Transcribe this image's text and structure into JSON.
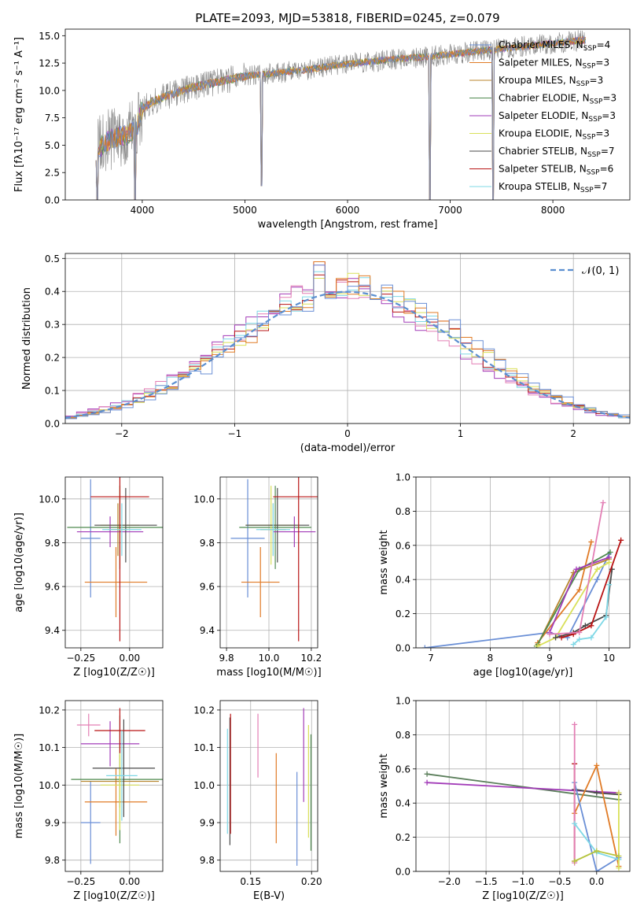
{
  "figure": {
    "title": "PLATE=2093, MJD=53818, FIBERID=0245, z=0.079"
  },
  "colors": {
    "Chabrier MILES": "#6a8fd6",
    "Salpeter MILES": "#e07b26",
    "Kroupa MILES": "#b8862e",
    "Chabrier ELODIE": "#4f8a4f",
    "Salpeter ELODIE": "#a23bb8",
    "Kroupa ELODIE": "#d9e05a",
    "Chabrier STELIB": "#4a4a4a",
    "Salpeter STELIB": "#b81414",
    "Kroupa STELIB": "#7fd8e6",
    "Pink": "#e37fb5",
    "Olive": "#b6c43e",
    "DarkGreen": "#5b7f5b",
    "Gaussian": "#5b8fd0",
    "Spectrum": "#808080"
  },
  "chart_data": [
    {
      "type": "line",
      "name": "spectrum",
      "title": "PLATE=2093, MJD=53818, FIBERID=0245, z=0.079",
      "xlabel": "wavelength [Angstrom, rest frame]",
      "ylabel": "Flux [f$_\\lambda$10$^{-17}$ erg cm$^{-2}$ s$^{-1}$ A$^{-1}$]",
      "ylabel_display": "Flux [fλ10⁻¹⁷ erg cm⁻² s⁻¹ A⁻¹]",
      "xlim": [
        3250,
        8750
      ],
      "ylim": [
        0,
        15.6
      ],
      "xticks": [
        4000,
        5000,
        6000,
        7000,
        8000
      ],
      "yticks": [
        0.0,
        2.5,
        5.0,
        7.5,
        10.0,
        12.5,
        15.0
      ],
      "ytick_labels": [
        "0.0",
        "2.5",
        "5.0",
        "7.5",
        "10.0",
        "12.5",
        "15.0"
      ],
      "legend": [
        "Chabrier MILES, N_SSP=4",
        "Salpeter MILES, N_SSP=3",
        "Kroupa MILES, N_SSP=3",
        "Chabrier ELODIE, N_SSP=3",
        "Salpeter ELODIE, N_SSP=3",
        "Kroupa ELODIE, N_SSP=3",
        "Chabrier STELIB, N_SSP=7",
        "Salpeter STELIB, N_SSP=6",
        "Kroupa STELIB, N_SSP=7"
      ],
      "legend_models": [
        "Chabrier MILES",
        "Salpeter MILES",
        "Kroupa MILES",
        "Chabrier ELODIE",
        "Salpeter ELODIE",
        "Kroupa ELODIE",
        "Chabrier STELIB",
        "Salpeter STELIB",
        "Kroupa STELIB"
      ],
      "legend_nssp": [
        4,
        3,
        3,
        3,
        3,
        3,
        7,
        6,
        7
      ],
      "legend_position": "upper right",
      "continuum": {
        "x": [
          3550,
          3700,
          3850,
          3950,
          4000,
          4100,
          4300,
          4500,
          4800,
          5000,
          5300,
          5600,
          5900,
          6200,
          6500,
          6800,
          7100,
          7400,
          7700,
          8000,
          8300
        ],
        "y": [
          4.6,
          5.6,
          5.9,
          6.8,
          8.3,
          9.0,
          9.7,
          10.3,
          10.9,
          11.3,
          11.6,
          11.9,
          12.3,
          12.6,
          12.9,
          13.1,
          13.4,
          13.7,
          14.0,
          14.3,
          14.6
        ]
      },
      "dips": [
        {
          "x": 3560,
          "y": 0
        },
        {
          "x": 3930,
          "y": 0
        },
        {
          "x": 5160,
          "y": 1.3
        },
        {
          "x": 6800,
          "y": 0
        },
        {
          "x": 7420,
          "y": 0
        }
      ]
    },
    {
      "type": "step",
      "name": "residual-histogram",
      "xlabel": "(data-model)/error",
      "ylabel": "Normed distribution",
      "xlim": [
        -2.5,
        2.5
      ],
      "ylim": [
        0,
        0.515
      ],
      "xticks": [
        -2,
        -1,
        0,
        1,
        2
      ],
      "xtick_labels": [
        "−2",
        "−1",
        "0",
        "1",
        "2"
      ],
      "yticks": [
        0.0,
        0.1,
        0.2,
        0.3,
        0.4,
        0.5
      ],
      "ytick_labels": [
        "0.0",
        "0.1",
        "0.2",
        "0.3",
        "0.4",
        "0.5"
      ],
      "grid": true,
      "legend": [
        "𝒩(0, 1)"
      ],
      "legend_position": "upper right",
      "bin_width": 0.1,
      "gaussian": {
        "mean": 0,
        "sigma": 1
      },
      "peak_values": [
        0.49,
        0.48,
        0.46,
        0.45,
        0.44
      ]
    },
    {
      "type": "errorbar",
      "name": "age-vs-Z",
      "xlabel": "Z [log10(Z/Z☉)]",
      "ylabel": "age [log10(age/yr)]",
      "xlim": [
        -0.33,
        0.17
      ],
      "ylim": [
        9.32,
        10.1
      ],
      "xticks": [
        -0.25,
        0.0
      ],
      "xtick_labels": [
        "−0.25",
        "0.00"
      ],
      "yticks": [
        9.4,
        9.6,
        9.8,
        10.0
      ],
      "ytick_labels": [
        "9.4",
        "9.6",
        "9.8",
        "10.0"
      ],
      "grid": true,
      "points": [
        {
          "model": "Chabrier MILES",
          "x": -0.2,
          "y": 9.82,
          "xerr": 0.05,
          "yerr": 0.27
        },
        {
          "model": "Salpeter MILES",
          "x": -0.07,
          "y": 9.62,
          "xerr": 0.16,
          "yerr": 0.16
        },
        {
          "model": "Kroupa MILES",
          "x": -0.06,
          "y": 9.86,
          "xerr": 0.05,
          "yerr": 0.12
        },
        {
          "model": "Chabrier ELODIE",
          "x": -0.05,
          "y": 9.87,
          "xerr": 0.27,
          "yerr": 0.19
        },
        {
          "model": "Salpeter ELODIE",
          "x": -0.1,
          "y": 9.85,
          "xerr": 0.17,
          "yerr": 0.07
        },
        {
          "model": "Kroupa ELODIE",
          "x": -0.05,
          "y": 9.88,
          "xerr": 0.1,
          "yerr": 0.18
        },
        {
          "model": "Chabrier STELIB",
          "x": -0.02,
          "y": 9.88,
          "xerr": 0.16,
          "yerr": 0.17
        },
        {
          "model": "Salpeter STELIB",
          "x": -0.05,
          "y": 10.01,
          "xerr": 0.15,
          "yerr": 0.66
        },
        {
          "model": "Kroupa STELIB",
          "x": -0.04,
          "y": 9.86,
          "xerr": 0.1,
          "yerr": 0.12
        }
      ]
    },
    {
      "type": "errorbar",
      "name": "age-vs-mass",
      "xlabel": "mass [log10(M/M☉)]",
      "ylabel": "",
      "xlim": [
        9.77,
        10.23
      ],
      "ylim": [
        9.32,
        10.1
      ],
      "xticks": [
        9.8,
        10.0,
        10.2
      ],
      "xtick_labels": [
        "9.8",
        "10.0",
        "10.2"
      ],
      "yticks": [
        9.4,
        9.6,
        9.8,
        10.0
      ],
      "ytick_labels": [
        "9.4",
        "9.6",
        "9.8",
        "10.0"
      ],
      "grid": true,
      "points": [
        {
          "model": "Chabrier MILES",
          "x": 9.9,
          "y": 9.82,
          "xerr": 0.08,
          "yerr": 0.27
        },
        {
          "model": "Salpeter MILES",
          "x": 9.96,
          "y": 9.62,
          "xerr": 0.09,
          "yerr": 0.16
        },
        {
          "model": "Kroupa MILES",
          "x": 10.02,
          "y": 9.86,
          "xerr": 0.06,
          "yerr": 0.12
        },
        {
          "model": "Chabrier ELODIE",
          "x": 10.03,
          "y": 9.87,
          "xerr": 0.17,
          "yerr": 0.19
        },
        {
          "model": "Salpeter ELODIE",
          "x": 10.12,
          "y": 9.85,
          "xerr": 0.1,
          "yerr": 0.07
        },
        {
          "model": "Kroupa ELODIE",
          "x": 10.01,
          "y": 9.88,
          "xerr": 0.12,
          "yerr": 0.18
        },
        {
          "model": "Chabrier STELIB",
          "x": 10.04,
          "y": 9.88,
          "xerr": 0.15,
          "yerr": 0.17
        },
        {
          "model": "Salpeter STELIB",
          "x": 10.14,
          "y": 10.01,
          "xerr": 0.12,
          "yerr": 0.66
        },
        {
          "model": "Kroupa STELIB",
          "x": 10.02,
          "y": 9.86,
          "xerr": 0.08,
          "yerr": 0.12
        }
      ]
    },
    {
      "type": "line",
      "name": "mass-weight-vs-age",
      "xlabel": "age [log10(age/yr)]",
      "ylabel": "mass weight",
      "xlim": [
        6.75,
        10.35
      ],
      "ylim": [
        0,
        1.0
      ],
      "xticks": [
        7,
        8,
        9,
        10
      ],
      "xtick_labels": [
        "7",
        "8",
        "9",
        "10"
      ],
      "yticks": [
        0.0,
        0.2,
        0.4,
        0.6,
        0.8,
        1.0
      ],
      "ytick_labels": [
        "0.0",
        "0.2",
        "0.4",
        "0.6",
        "0.8",
        "1.0"
      ],
      "grid": true,
      "series": [
        {
          "model": "Chabrier MILES",
          "x": [
            6.9,
            9.0,
            9.3,
            9.8,
            10.0
          ],
          "y": [
            0.0,
            0.09,
            0.06,
            0.4,
            0.55
          ]
        },
        {
          "model": "Salpeter MILES",
          "x": [
            8.8,
            9.5,
            9.7
          ],
          "y": [
            0.03,
            0.34,
            0.62
          ]
        },
        {
          "model": "Kroupa MILES",
          "x": [
            8.8,
            9.4,
            10.0
          ],
          "y": [
            0.02,
            0.44,
            0.52
          ]
        },
        {
          "model": "Chabrier ELODIE",
          "x": [
            8.78,
            9.5,
            10.02
          ],
          "y": [
            0.01,
            0.46,
            0.56
          ]
        },
        {
          "model": "Salpeter ELODIE",
          "x": [
            9.0,
            9.45,
            10.0
          ],
          "y": [
            0.09,
            0.46,
            0.53
          ]
        },
        {
          "model": "Kroupa ELODIE",
          "x": [
            8.8,
            9.1,
            9.8,
            10.0
          ],
          "y": [
            0.01,
            0.06,
            0.46,
            0.5
          ]
        },
        {
          "model": "Chabrier STELIB",
          "x": [
            9.1,
            9.4,
            9.6,
            9.95,
            10.05
          ],
          "y": [
            0.06,
            0.09,
            0.13,
            0.19,
            0.46
          ]
        },
        {
          "model": "Salpeter STELIB",
          "x": [
            9.2,
            9.4,
            9.7,
            10.2
          ],
          "y": [
            0.06,
            0.08,
            0.13,
            0.63
          ]
        },
        {
          "model": "Kroupa STELIB",
          "x": [
            9.4,
            9.5,
            9.7,
            9.95,
            10.0
          ],
          "y": [
            0.02,
            0.05,
            0.06,
            0.18,
            0.37
          ]
        },
        {
          "model": "Pink",
          "x": [
            9.0,
            9.5,
            9.9
          ],
          "y": [
            0.08,
            0.09,
            0.85
          ]
        }
      ]
    },
    {
      "type": "errorbar",
      "name": "mass-vs-Z",
      "xlabel": "Z [log10(Z/Z☉)]",
      "ylabel": "mass [log10(M/M☉)]",
      "xlim": [
        -0.33,
        0.17
      ],
      "ylim": [
        9.77,
        10.225
      ],
      "xticks": [
        -0.25,
        0.0
      ],
      "xtick_labels": [
        "−0.25",
        "0.00"
      ],
      "yticks": [
        9.8,
        9.9,
        10.0,
        10.1,
        10.2
      ],
      "ytick_labels": [
        "9.8",
        "9.9",
        "10.0",
        "10.1",
        "10.2"
      ],
      "grid": true,
      "points": [
        {
          "model": "Chabrier MILES",
          "x": -0.2,
          "y": 9.9,
          "xerr": 0.05,
          "yerr": 0.11
        },
        {
          "model": "Salpeter MILES",
          "x": -0.07,
          "y": 9.955,
          "xerr": 0.16,
          "yerr": 0.09
        },
        {
          "model": "Kroupa MILES",
          "x": -0.05,
          "y": 10.01,
          "xerr": 0.2,
          "yerr": 0.07
        },
        {
          "model": "Chabrier ELODIE",
          "x": -0.05,
          "y": 10.015,
          "xerr": 0.25,
          "yerr": 0.17
        },
        {
          "model": "Salpeter ELODIE",
          "x": -0.1,
          "y": 10.11,
          "xerr": 0.15,
          "yerr": 0.06
        },
        {
          "model": "Kroupa ELODIE",
          "x": -0.05,
          "y": 10.0,
          "xerr": 0.1,
          "yerr": 0.12
        },
        {
          "model": "Chabrier STELIB",
          "x": -0.03,
          "y": 10.045,
          "xerr": 0.16,
          "yerr": 0.13
        },
        {
          "model": "Salpeter STELIB",
          "x": -0.05,
          "y": 10.145,
          "xerr": 0.13,
          "yerr": 0.06
        },
        {
          "model": "Kroupa STELIB",
          "x": -0.04,
          "y": 10.025,
          "xerr": 0.08,
          "yerr": 0.12
        },
        {
          "model": "Pink",
          "x": -0.21,
          "y": 10.16,
          "xerr": 0.06,
          "yerr": 0.03
        }
      ]
    },
    {
      "type": "errorbar",
      "name": "mass-vs-EBV",
      "xlabel": "E(B-V)",
      "ylabel": "",
      "xlim": [
        0.125,
        0.205
      ],
      "ylim": [
        9.77,
        10.225
      ],
      "xticks": [
        0.15,
        0.2
      ],
      "xtick_labels": [
        "0.15",
        "0.20"
      ],
      "yticks": [
        9.8,
        9.9,
        10.0,
        10.1,
        10.2
      ],
      "ytick_labels": [
        "9.8",
        "9.9",
        "10.0",
        "10.1",
        "10.2"
      ],
      "grid": true,
      "points": [
        {
          "model": "Kroupa STELIB",
          "x": 0.131,
          "y": 10.01,
          "yerr": 0.14
        },
        {
          "model": "Chabrier STELIB",
          "x": 0.133,
          "y": 10.01,
          "yerr": 0.17
        },
        {
          "model": "Salpeter STELIB",
          "x": 0.1335,
          "y": 10.03,
          "yerr": 0.16
        },
        {
          "model": "Pink",
          "x": 0.156,
          "y": 10.105,
          "yerr": 0.085
        },
        {
          "model": "Salpeter MILES",
          "x": 0.171,
          "y": 9.965,
          "yerr": 0.12
        },
        {
          "model": "Chabrier MILES",
          "x": 0.188,
          "y": 9.91,
          "yerr": 0.125
        },
        {
          "model": "Salpeter ELODIE",
          "x": 0.1935,
          "y": 10.08,
          "yerr": 0.125
        },
        {
          "model": "Kroupa ELODIE",
          "x": 0.1975,
          "y": 10.01,
          "yerr": 0.15
        },
        {
          "model": "Chabrier ELODIE",
          "x": 0.1995,
          "y": 9.98,
          "yerr": 0.155
        }
      ]
    },
    {
      "type": "line",
      "name": "mass-weight-vs-Z",
      "xlabel": "Z [log10(Z/Z☉)]",
      "ylabel": "mass weight",
      "xlim": [
        -2.45,
        0.45
      ],
      "ylim": [
        0,
        1.0
      ],
      "xticks": [
        -2.0,
        -1.5,
        -1.0,
        -0.5,
        0.0
      ],
      "xtick_labels": [
        "−2.0",
        "−1.5",
        "−1.0",
        "−0.5",
        "0.0"
      ],
      "yticks": [
        0.0,
        0.2,
        0.4,
        0.6,
        0.8,
        1.0
      ],
      "ytick_labels": [
        "0.0",
        "0.2",
        "0.4",
        "0.6",
        "0.8",
        "1.0"
      ],
      "grid": true,
      "series": [
        {
          "model": "DarkGreen",
          "x": [
            -2.3,
            0.3
          ],
          "y": [
            0.57,
            0.42
          ]
        },
        {
          "model": "Salpeter ELODIE",
          "x": [
            -2.3,
            0.3
          ],
          "y": [
            0.52,
            0.46
          ]
        },
        {
          "model": "Chabrier STELIB",
          "x": [
            -0.3,
            0.0,
            0.3
          ],
          "y": [
            0.48,
            0.46,
            0.45
          ]
        },
        {
          "model": "Salpeter MILES",
          "x": [
            -0.3,
            0.0,
            0.3
          ],
          "y": [
            0.34,
            0.62,
            0.03
          ]
        },
        {
          "model": "Chabrier MILES",
          "x": [
            -0.3,
            0.0,
            0.3
          ],
          "y": [
            0.52,
            0.0,
            0.08
          ]
        },
        {
          "model": "Salpeter STELIB",
          "x": [
            -0.3,
            -0.3
          ],
          "y": [
            0.63,
            0.06
          ]
        },
        {
          "model": "Pink",
          "x": [
            -0.3,
            -0.3
          ],
          "y": [
            0.86,
            0.05
          ]
        },
        {
          "model": "Kroupa STELIB",
          "x": [
            -0.3,
            0.0,
            0.3
          ],
          "y": [
            0.28,
            0.11,
            0.07
          ]
        },
        {
          "model": "Kroupa ELODIE",
          "x": [
            0.3,
            0.3
          ],
          "y": [
            0.46,
            0.02
          ]
        },
        {
          "model": "Olive",
          "x": [
            -0.3,
            0.0,
            0.3
          ],
          "y": [
            0.06,
            0.12,
            0.09
          ]
        }
      ]
    }
  ]
}
